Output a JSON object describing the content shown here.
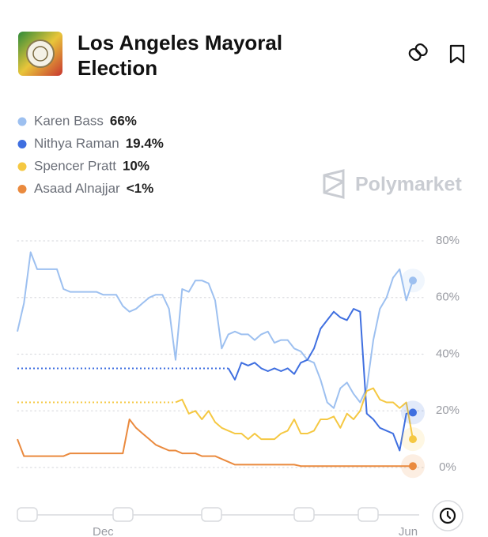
{
  "title": "Los Angeles Mayoral Election",
  "watermark": "Polymarket",
  "chart_data": {
    "type": "line",
    "categories": [
      null,
      null,
      null,
      null,
      null,
      null,
      null,
      null,
      null,
      null,
      null,
      null,
      null,
      "Dec",
      null,
      null,
      null,
      null,
      null,
      null,
      null,
      null,
      null,
      null,
      null,
      null,
      null,
      null,
      null,
      null,
      null,
      null,
      null,
      null,
      null,
      null,
      null,
      null,
      null,
      null,
      null,
      null,
      null,
      null,
      null,
      null,
      null,
      null,
      null,
      null,
      null,
      null,
      null,
      null,
      null,
      null,
      null,
      null,
      null,
      null,
      "Jun"
    ],
    "series": [
      {
        "name": "Karen Bass",
        "current": "66%",
        "color": "#9dc0f0",
        "values": [
          48,
          58,
          76,
          70,
          70,
          70,
          70,
          63,
          62,
          62,
          62,
          62,
          62,
          61,
          61,
          61,
          57,
          55,
          56,
          58,
          60,
          61,
          61,
          56,
          38,
          63,
          62,
          66,
          66,
          65,
          59,
          42,
          47,
          48,
          47,
          47,
          45,
          47,
          48,
          44,
          45,
          45,
          42,
          41,
          38,
          37,
          31,
          23,
          21,
          28,
          30,
          26,
          23,
          28,
          45,
          56,
          60,
          67,
          70,
          59,
          66
        ]
      },
      {
        "name": "Nithya Raman",
        "current": "19.4%",
        "color": "#3f6fe0",
        "values": [
          null,
          null,
          null,
          null,
          null,
          null,
          null,
          null,
          null,
          null,
          null,
          null,
          null,
          null,
          null,
          null,
          null,
          null,
          null,
          null,
          null,
          null,
          null,
          null,
          null,
          null,
          null,
          null,
          null,
          null,
          null,
          null,
          35,
          31,
          37,
          36,
          37,
          35,
          34,
          35,
          34,
          35,
          33,
          37,
          38,
          42,
          49,
          52,
          55,
          53,
          52,
          56,
          55,
          19,
          17,
          14,
          13,
          12,
          6,
          19,
          19.4
        ]
      },
      {
        "name": "Spencer Pratt",
        "current": "10%",
        "color": "#f5c842",
        "values": [
          null,
          null,
          null,
          null,
          null,
          null,
          null,
          null,
          null,
          null,
          null,
          null,
          null,
          null,
          null,
          null,
          null,
          null,
          null,
          null,
          null,
          null,
          null,
          null,
          23,
          24,
          19,
          20,
          17,
          20,
          16,
          14,
          13,
          12,
          12,
          10,
          12,
          10,
          10,
          10,
          12,
          13,
          17,
          12,
          12,
          13,
          17,
          17,
          18,
          14,
          19,
          17,
          20,
          27,
          28,
          24,
          23,
          23,
          21,
          23,
          10
        ]
      },
      {
        "name": "Asaad Alnajjar",
        "current": "<1%",
        "color": "#ea8a3e",
        "values": [
          10,
          4,
          4,
          4,
          4,
          4,
          4,
          4,
          5,
          5,
          5,
          5,
          5,
          5,
          5,
          5,
          5,
          17,
          14,
          12,
          10,
          8,
          7,
          6,
          6,
          5,
          5,
          5,
          4,
          4,
          4,
          3,
          2,
          1,
          1,
          1,
          1,
          1,
          1,
          1,
          1,
          1,
          1,
          0.5,
          0.5,
          0.5,
          0.5,
          0.5,
          0.5,
          0.5,
          0.5,
          0.5,
          0.5,
          0.5,
          0.5,
          0.5,
          0.5,
          0.5,
          0.5,
          0.5,
          0.5
        ]
      }
    ],
    "ylim": [
      0,
      80
    ],
    "yticks": [
      {
        "value": 0,
        "label": "0%"
      },
      {
        "value": 20,
        "label": "20%"
      },
      {
        "value": 40,
        "label": "40%"
      },
      {
        "value": 60,
        "label": "60%"
      },
      {
        "value": 80,
        "label": "80%"
      }
    ],
    "grid": true
  }
}
